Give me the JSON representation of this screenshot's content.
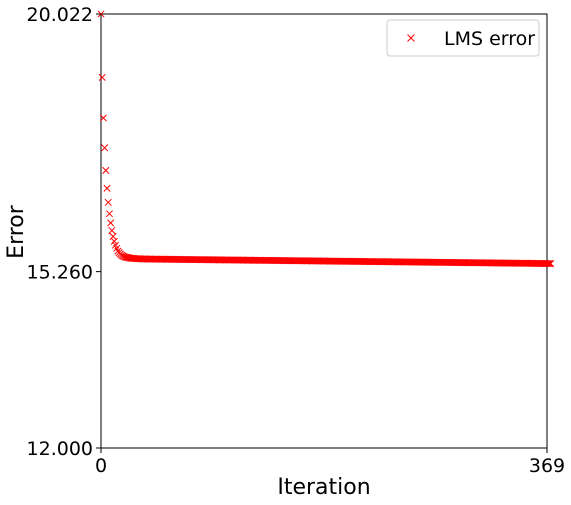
{
  "chart_data": {
    "type": "scatter",
    "xlabel": "Iteration",
    "ylabel": "Error",
    "xlim": [
      0,
      369
    ],
    "ylim": [
      12.0,
      20.022
    ],
    "xticks": [
      {
        "value": 0,
        "label": "0"
      },
      {
        "value": 369,
        "label": "369"
      }
    ],
    "yticks": [
      {
        "value": 12.0,
        "label": "12.000"
      },
      {
        "value": 15.26,
        "label": "15.260"
      },
      {
        "value": 20.022,
        "label": "20.022"
      }
    ],
    "grid": false,
    "legend_position": "top-right",
    "marker": "x",
    "color": "#ff0000",
    "series": [
      {
        "name": "LMS error",
        "x_start": 0,
        "x_step": 1,
        "y": [
          20.022,
          18.85,
          18.1,
          17.55,
          17.13,
          16.8,
          16.54,
          16.33,
          16.16,
          16.02,
          15.91,
          15.82,
          15.75,
          15.69,
          15.64,
          15.61,
          15.585,
          15.565,
          15.55,
          15.54,
          15.53,
          15.525,
          15.52,
          15.515,
          15.51,
          15.508,
          15.506,
          15.504,
          15.502,
          15.5,
          15.499,
          15.498,
          15.497,
          15.496,
          15.495,
          15.495,
          15.494,
          15.494,
          15.493,
          15.493,
          15.492,
          15.492,
          15.492,
          15.491,
          15.491,
          15.491,
          15.49,
          15.49,
          15.49,
          15.49,
          15.489,
          15.489,
          15.489,
          15.489,
          15.488,
          15.488,
          15.488,
          15.488,
          15.487,
          15.487,
          15.487,
          15.487,
          15.486,
          15.486,
          15.486,
          15.486,
          15.485,
          15.485,
          15.485,
          15.485,
          15.484,
          15.484,
          15.484,
          15.484,
          15.483,
          15.483,
          15.483,
          15.483,
          15.482,
          15.482,
          15.482,
          15.482,
          15.481,
          15.481,
          15.481,
          15.481,
          15.48,
          15.48,
          15.48,
          15.48,
          15.479,
          15.479,
          15.479,
          15.479,
          15.478,
          15.478,
          15.478,
          15.478,
          15.477,
          15.477,
          15.477,
          15.477,
          15.476,
          15.476,
          15.476,
          15.476,
          15.475,
          15.475,
          15.475,
          15.475,
          15.474,
          15.474,
          15.474,
          15.474,
          15.473,
          15.473,
          15.473,
          15.473,
          15.472,
          15.472,
          15.472,
          15.472,
          15.471,
          15.471,
          15.471,
          15.471,
          15.47,
          15.47,
          15.47,
          15.47,
          15.469,
          15.469,
          15.469,
          15.469,
          15.468,
          15.468,
          15.468,
          15.468,
          15.467,
          15.467,
          15.467,
          15.467,
          15.466,
          15.466,
          15.466,
          15.466,
          15.465,
          15.465,
          15.465,
          15.465,
          15.464,
          15.464,
          15.464,
          15.464,
          15.463,
          15.463,
          15.463,
          15.463,
          15.462,
          15.462,
          15.462,
          15.462,
          15.461,
          15.461,
          15.461,
          15.461,
          15.46,
          15.46,
          15.46,
          15.46,
          15.459,
          15.459,
          15.459,
          15.459,
          15.458,
          15.458,
          15.458,
          15.458,
          15.457,
          15.457,
          15.457,
          15.457,
          15.456,
          15.456,
          15.456,
          15.456,
          15.455,
          15.455,
          15.455,
          15.455,
          15.454,
          15.454,
          15.454,
          15.454,
          15.453,
          15.453,
          15.453,
          15.453,
          15.452,
          15.452,
          15.452,
          15.452,
          15.451,
          15.451,
          15.451,
          15.451,
          15.45,
          15.45,
          15.45,
          15.45,
          15.449,
          15.449,
          15.449,
          15.449,
          15.448,
          15.448,
          15.448,
          15.448,
          15.447,
          15.447,
          15.447,
          15.447,
          15.446,
          15.446,
          15.446,
          15.446,
          15.445,
          15.445,
          15.445,
          15.445,
          15.444,
          15.444,
          15.444,
          15.444,
          15.443,
          15.443,
          15.443,
          15.443,
          15.442,
          15.442,
          15.442,
          15.442,
          15.441,
          15.441,
          15.441,
          15.441,
          15.44,
          15.44,
          15.44,
          15.44,
          15.439,
          15.439,
          15.439,
          15.439,
          15.438,
          15.438,
          15.438,
          15.438,
          15.437,
          15.437,
          15.437,
          15.437,
          15.436,
          15.436,
          15.436,
          15.436,
          15.435,
          15.435,
          15.435,
          15.435,
          15.434,
          15.434,
          15.434,
          15.434,
          15.433,
          15.433,
          15.433,
          15.433,
          15.432,
          15.432,
          15.432,
          15.432,
          15.431,
          15.431,
          15.431,
          15.431,
          15.43,
          15.43,
          15.43,
          15.43,
          15.429,
          15.429,
          15.429,
          15.429,
          15.428,
          15.428,
          15.428,
          15.428,
          15.427,
          15.427,
          15.427,
          15.427,
          15.426,
          15.426,
          15.426,
          15.426,
          15.425,
          15.425,
          15.425,
          15.425,
          15.424,
          15.424,
          15.424,
          15.424,
          15.423,
          15.423,
          15.423,
          15.423,
          15.422,
          15.422,
          15.422,
          15.422,
          15.421,
          15.421,
          15.421,
          15.421,
          15.42,
          15.42,
          15.42,
          15.42,
          15.419,
          15.419,
          15.419,
          15.419,
          15.418,
          15.418,
          15.418,
          15.418,
          15.417,
          15.417,
          15.417,
          15.417,
          15.416,
          15.416,
          15.416,
          15.416,
          15.415,
          15.415,
          15.415,
          15.415,
          15.414,
          15.414,
          15.414,
          15.414,
          15.413,
          15.413,
          15.413,
          15.413,
          15.412,
          15.412,
          15.412,
          15.412,
          15.411,
          15.411,
          15.411,
          15.411,
          15.41,
          15.41,
          15.41,
          15.41,
          15.409,
          15.409,
          15.409
        ]
      }
    ]
  }
}
